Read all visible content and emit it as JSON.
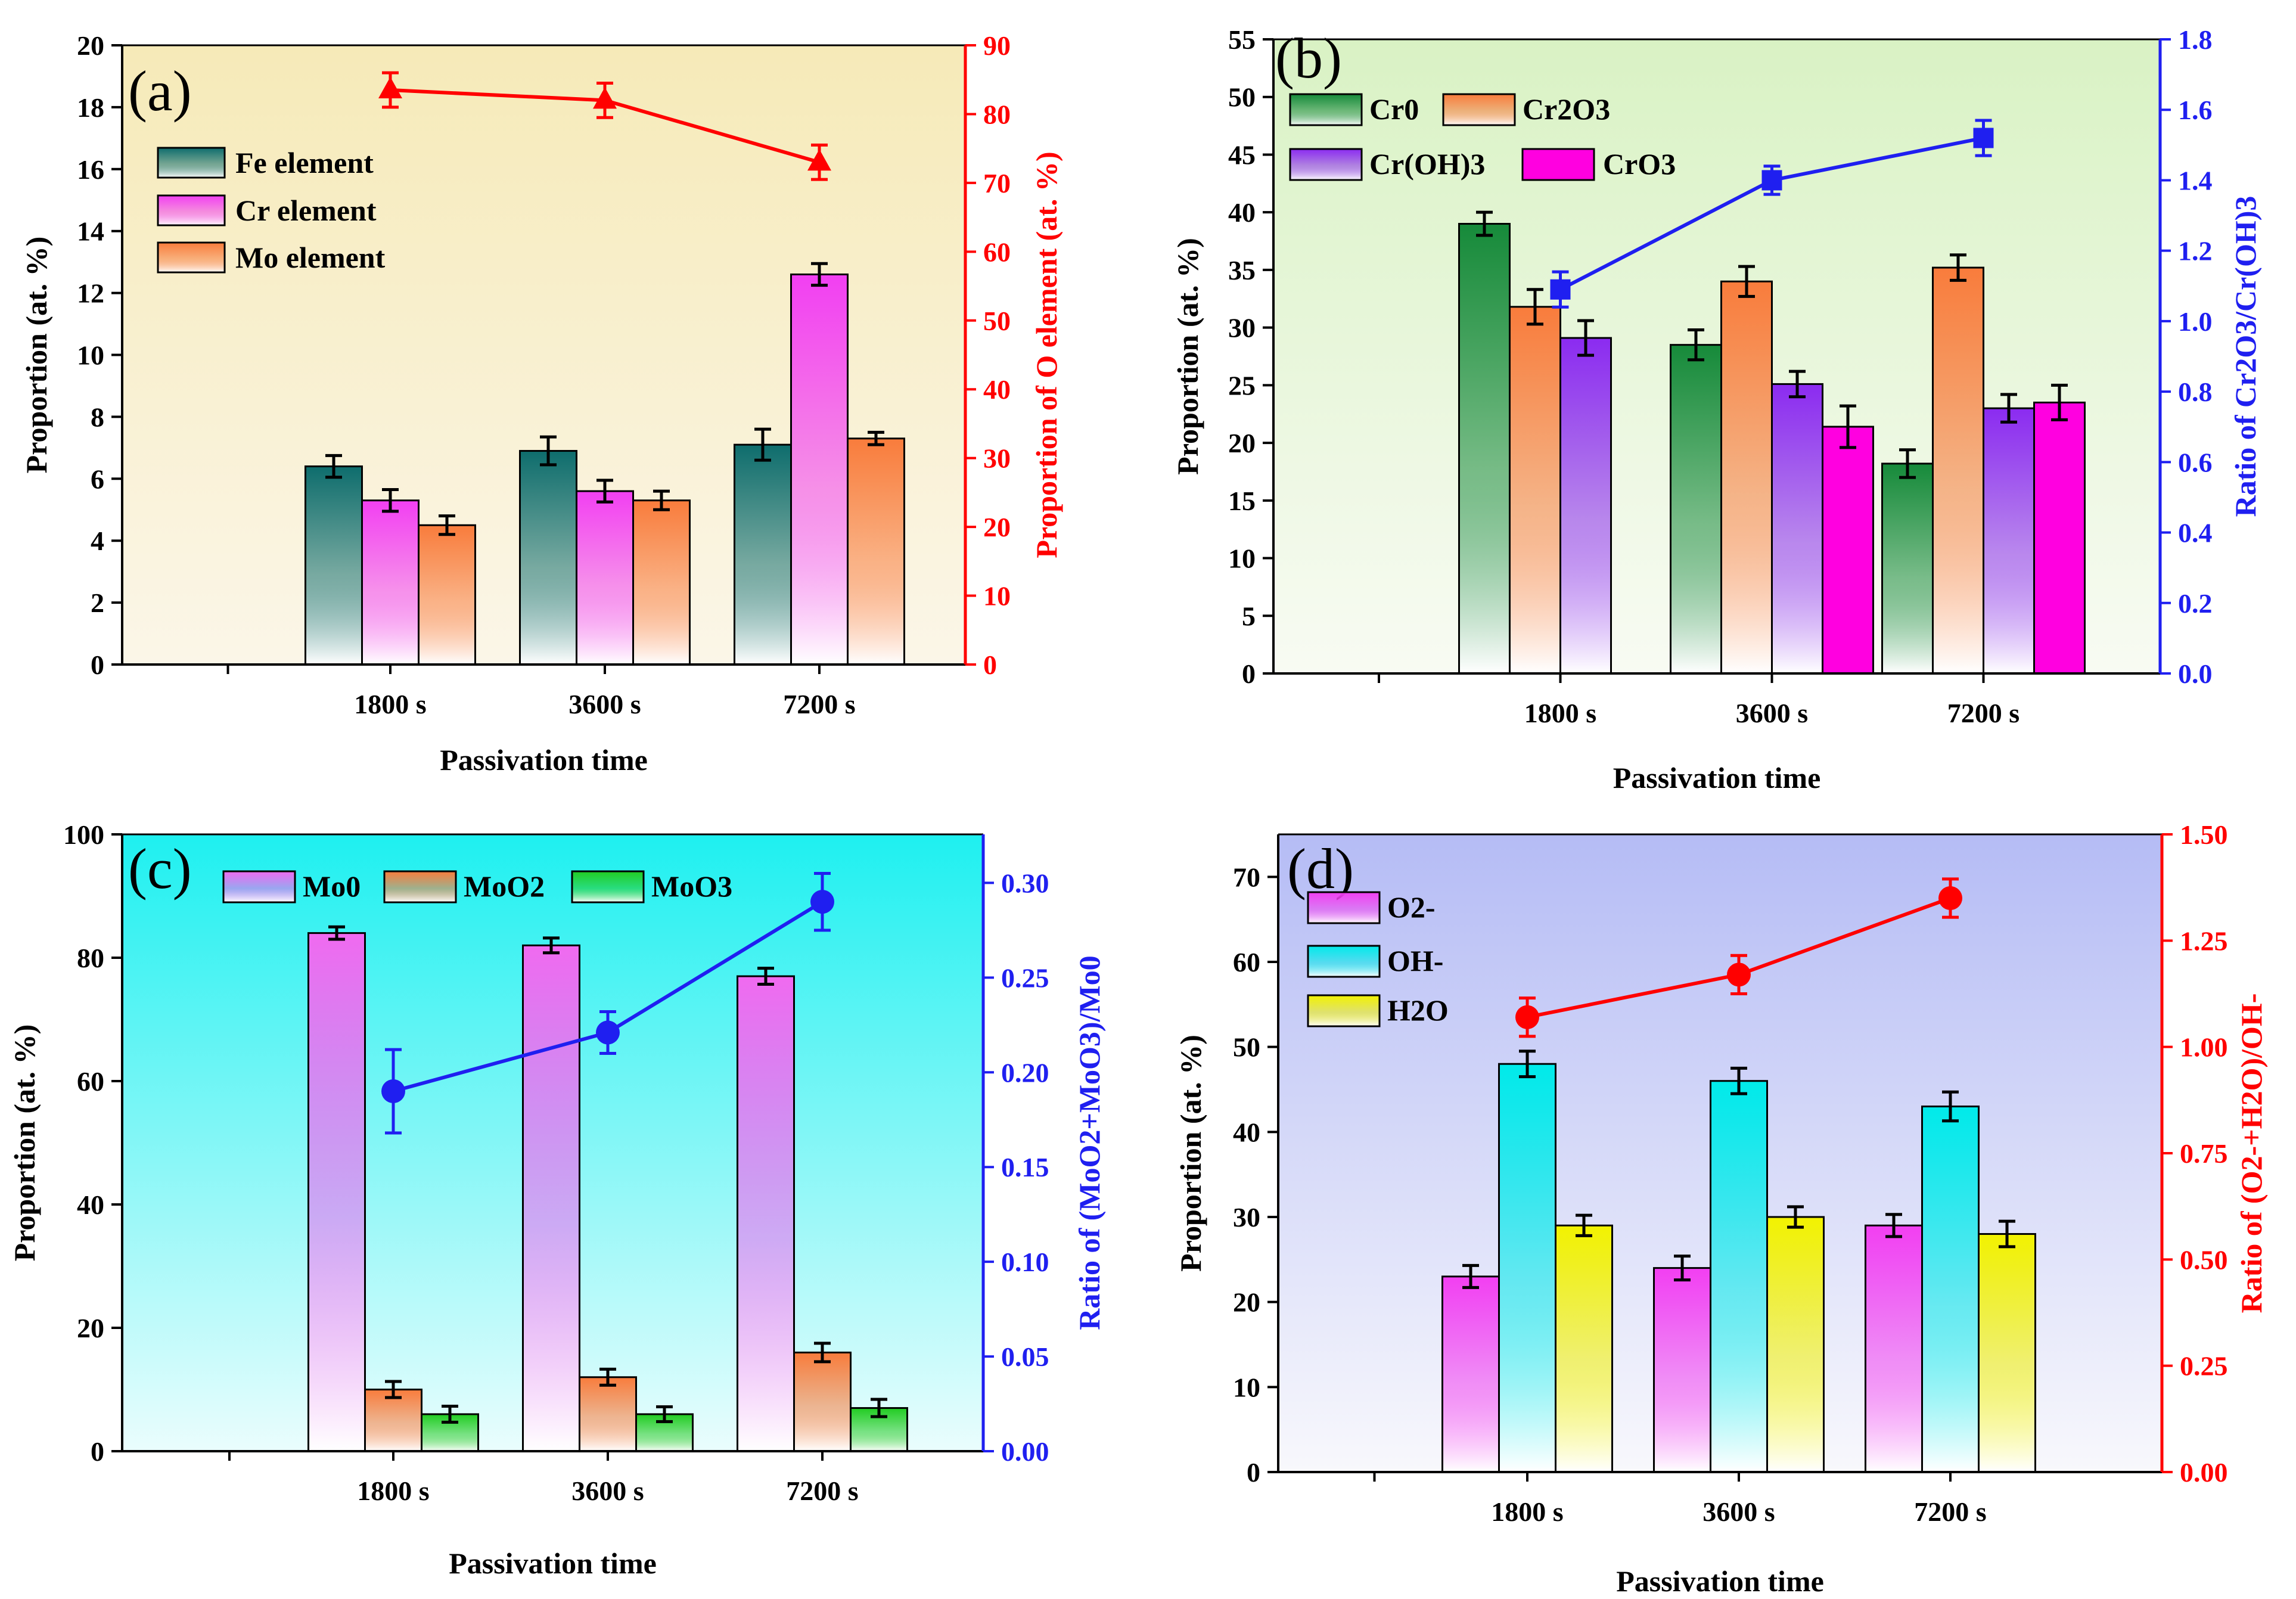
{
  "chart_data": [
    {
      "panel": "(a)",
      "type": "bar",
      "xlabel": "Passivation time",
      "ylabel": "Proportion (at. %)",
      "y2label": "Proportion of O element (at. %)",
      "categories": [
        "1800 s",
        "3600 s",
        "7200 s"
      ],
      "ylim": [
        0,
        20
      ],
      "yticks": [
        0,
        2,
        4,
        6,
        8,
        10,
        12,
        14,
        16,
        18,
        20
      ],
      "y2lim": [
        0,
        90
      ],
      "y2ticks": [
        0,
        10,
        20,
        30,
        40,
        50,
        60,
        70,
        80,
        90
      ],
      "background": [
        "#fbf6e8",
        "#f6eab8"
      ],
      "y2color": "#ff0000",
      "series": [
        {
          "name": "Fe element",
          "values": [
            6.4,
            6.9,
            7.1
          ],
          "errors": [
            0.35,
            0.45,
            0.5
          ],
          "color": "#0e6d6d"
        },
        {
          "name": "Cr element",
          "values": [
            5.3,
            5.6,
            12.6
          ],
          "errors": [
            0.35,
            0.35,
            0.35
          ],
          "color": "#f23ff2"
        },
        {
          "name": "Mo element",
          "values": [
            4.5,
            5.3,
            7.3
          ],
          "errors": [
            0.3,
            0.3,
            0.2
          ],
          "color": "#f97c3c"
        }
      ],
      "line": {
        "name": "O element",
        "values": [
          83.5,
          82,
          73
        ],
        "errors": [
          2.5,
          2.5,
          2.5
        ],
        "color": "#ff0000",
        "marker": "triangle"
      }
    },
    {
      "panel": "(b)",
      "type": "bar",
      "xlabel": "Passivation time",
      "ylabel": "Proportion (at. %)",
      "y2label": "Ratio of Cr2O3/Cr(OH)3",
      "categories": [
        "1800 s",
        "3600 s",
        "7200 s"
      ],
      "ylim": [
        0,
        55
      ],
      "yticks": [
        0,
        5,
        10,
        15,
        20,
        25,
        30,
        35,
        40,
        45,
        50,
        55
      ],
      "y2lim": [
        0,
        1.8
      ],
      "y2ticks": [
        "0.0",
        "0.2",
        "0.4",
        "0.6",
        "0.8",
        "1.0",
        "1.2",
        "1.4",
        "1.6",
        "1.8"
      ],
      "background": [
        "#f8fbf3",
        "#d9f2c4"
      ],
      "y2color": "#1f1ff0",
      "series": [
        {
          "name": "Cr0",
          "values": [
            39,
            28.5,
            18.2
          ],
          "errors": [
            1.0,
            1.3,
            1.2
          ],
          "color": "#168a3a"
        },
        {
          "name": "Cr2O3",
          "values": [
            31.8,
            34,
            35.2
          ],
          "errors": [
            1.5,
            1.3,
            1.1
          ],
          "color": "#f97c3c"
        },
        {
          "name": "Cr(OH)3",
          "values": [
            29.1,
            25.1,
            23
          ],
          "errors": [
            1.5,
            1.1,
            1.2
          ],
          "color": "#8b2bf0"
        },
        {
          "name": "CrO3",
          "values": [
            null,
            21.4,
            23.5
          ],
          "errors": [
            null,
            1.8,
            1.5
          ],
          "color": "#ff00e0",
          "solid": true
        }
      ],
      "line": {
        "name": "Cr2O3/Cr(OH)3",
        "values": [
          1.09,
          1.4,
          1.52
        ],
        "errors": [
          0.05,
          0.04,
          0.05
        ],
        "color": "#1f1ff0",
        "marker": "square"
      }
    },
    {
      "panel": "(c)",
      "type": "bar",
      "xlabel": "Passivation time",
      "ylabel": "Proportion (at. %)",
      "y2label": "Ratio of (MoO2+MoO3)/Mo0",
      "categories": [
        "1800 s",
        "3600 s",
        "7200 s"
      ],
      "ylim": [
        0,
        100
      ],
      "yticks": [
        0,
        20,
        40,
        60,
        80,
        100
      ],
      "y2lim": [
        0,
        0.3256
      ],
      "y2ticks": [
        "0.00",
        "0.05",
        "0.10",
        "0.15",
        "0.20",
        "0.25",
        "0.30"
      ],
      "background": [
        "#eafdfd",
        "#1ef0f0"
      ],
      "y2color": "#1f1ff0",
      "series": [
        {
          "name": "Mo0",
          "values": [
            84,
            82,
            77
          ],
          "errors": [
            1.0,
            1.2,
            1.3
          ],
          "color": "#f06af0"
        },
        {
          "name": "MoO2",
          "values": [
            10,
            12,
            16
          ],
          "errors": [
            1.3,
            1.3,
            1.5
          ],
          "color": "#f97c3c"
        },
        {
          "name": "MoO3",
          "values": [
            6,
            6,
            7
          ],
          "errors": [
            1.3,
            1.2,
            1.4
          ],
          "color": "#22cc22"
        }
      ],
      "line": {
        "name": "(MoO2+MoO3)/Mo0",
        "values": [
          0.19,
          0.221,
          0.29
        ],
        "errors": [
          0.022,
          0.011,
          0.015
        ],
        "color": "#1f1ff0",
        "marker": "circle"
      }
    },
    {
      "panel": "(d)",
      "type": "bar",
      "xlabel": "Passivation time",
      "ylabel": "Proportion (at. %)",
      "y2label": "Ratio of (O2-+H2O)/OH-",
      "categories": [
        "1800 s",
        "3600 s",
        "7200 s"
      ],
      "ylim": [
        0,
        75
      ],
      "yticks": [
        0,
        10,
        20,
        30,
        40,
        50,
        60,
        70
      ],
      "y2lim": [
        0,
        1.5
      ],
      "y2ticks": [
        "0.00",
        "0.25",
        "0.50",
        "0.75",
        "1.00",
        "1.25",
        "1.50"
      ],
      "background": [
        "#f8f8fc",
        "#b5bcf5"
      ],
      "y2color": "#ff0000",
      "series": [
        {
          "name": "O2-",
          "values": [
            23,
            24,
            29
          ],
          "errors": [
            1.3,
            1.4,
            1.3
          ],
          "color": "#f23ff2"
        },
        {
          "name": "OH-",
          "values": [
            48,
            46,
            43
          ],
          "errors": [
            1.5,
            1.5,
            1.7
          ],
          "color": "#00eaea"
        },
        {
          "name": "H2O",
          "values": [
            29,
            30,
            28
          ],
          "errors": [
            1.2,
            1.2,
            1.5
          ],
          "color": "#f2f200"
        }
      ],
      "line": {
        "name": "(O2-+H2O)/OH-",
        "values": [
          1.07,
          1.17,
          1.35
        ],
        "errors": [
          0.045,
          0.045,
          0.045
        ],
        "color": "#ff0000",
        "marker": "circle"
      }
    }
  ]
}
